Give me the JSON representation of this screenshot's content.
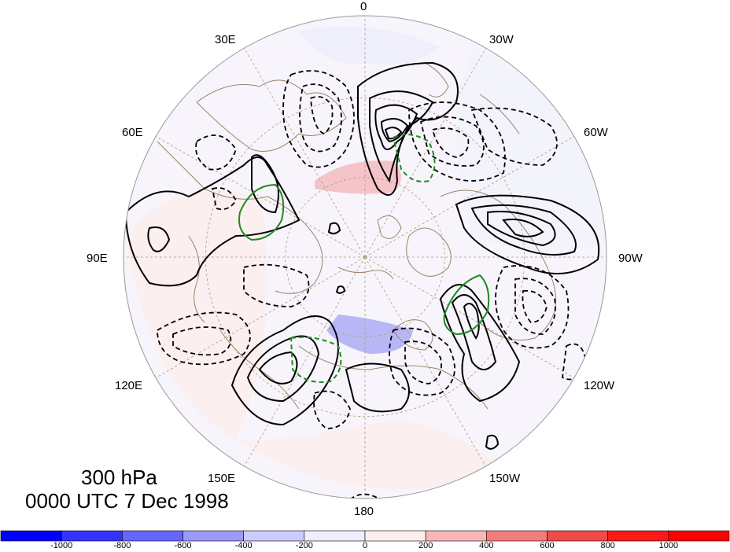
{
  "title": {
    "level": "300 hPa",
    "time": "0000 UTC 7 Dec 1998"
  },
  "map": {
    "projection": "polar stereographic (north pole)",
    "longitude_labels": [
      "0",
      "30W",
      "60W",
      "90W",
      "120W",
      "150W",
      "180",
      "150E",
      "120E",
      "90E",
      "60E",
      "30E"
    ],
    "background_color": "#eef0fb",
    "coastline_color": "#9c8466",
    "grid_color": "#b09a7c"
  },
  "colorbar": {
    "tick_labels": [
      "-1000",
      "-800",
      "-600",
      "-400",
      "-200",
      "0",
      "200",
      "400",
      "600",
      "800",
      "1000"
    ],
    "colors": [
      "#0000ff",
      "#3333ff",
      "#6666ff",
      "#9999ff",
      "#ccccff",
      "#eeeefc",
      "#fdeeee",
      "#f8b6b6",
      "#f57c7c",
      "#f24a4a",
      "#ff1a1a",
      "#ff0000"
    ]
  },
  "contour_legend": {
    "positive": "solid black",
    "negative": "dashed black",
    "highlight": "green"
  }
}
